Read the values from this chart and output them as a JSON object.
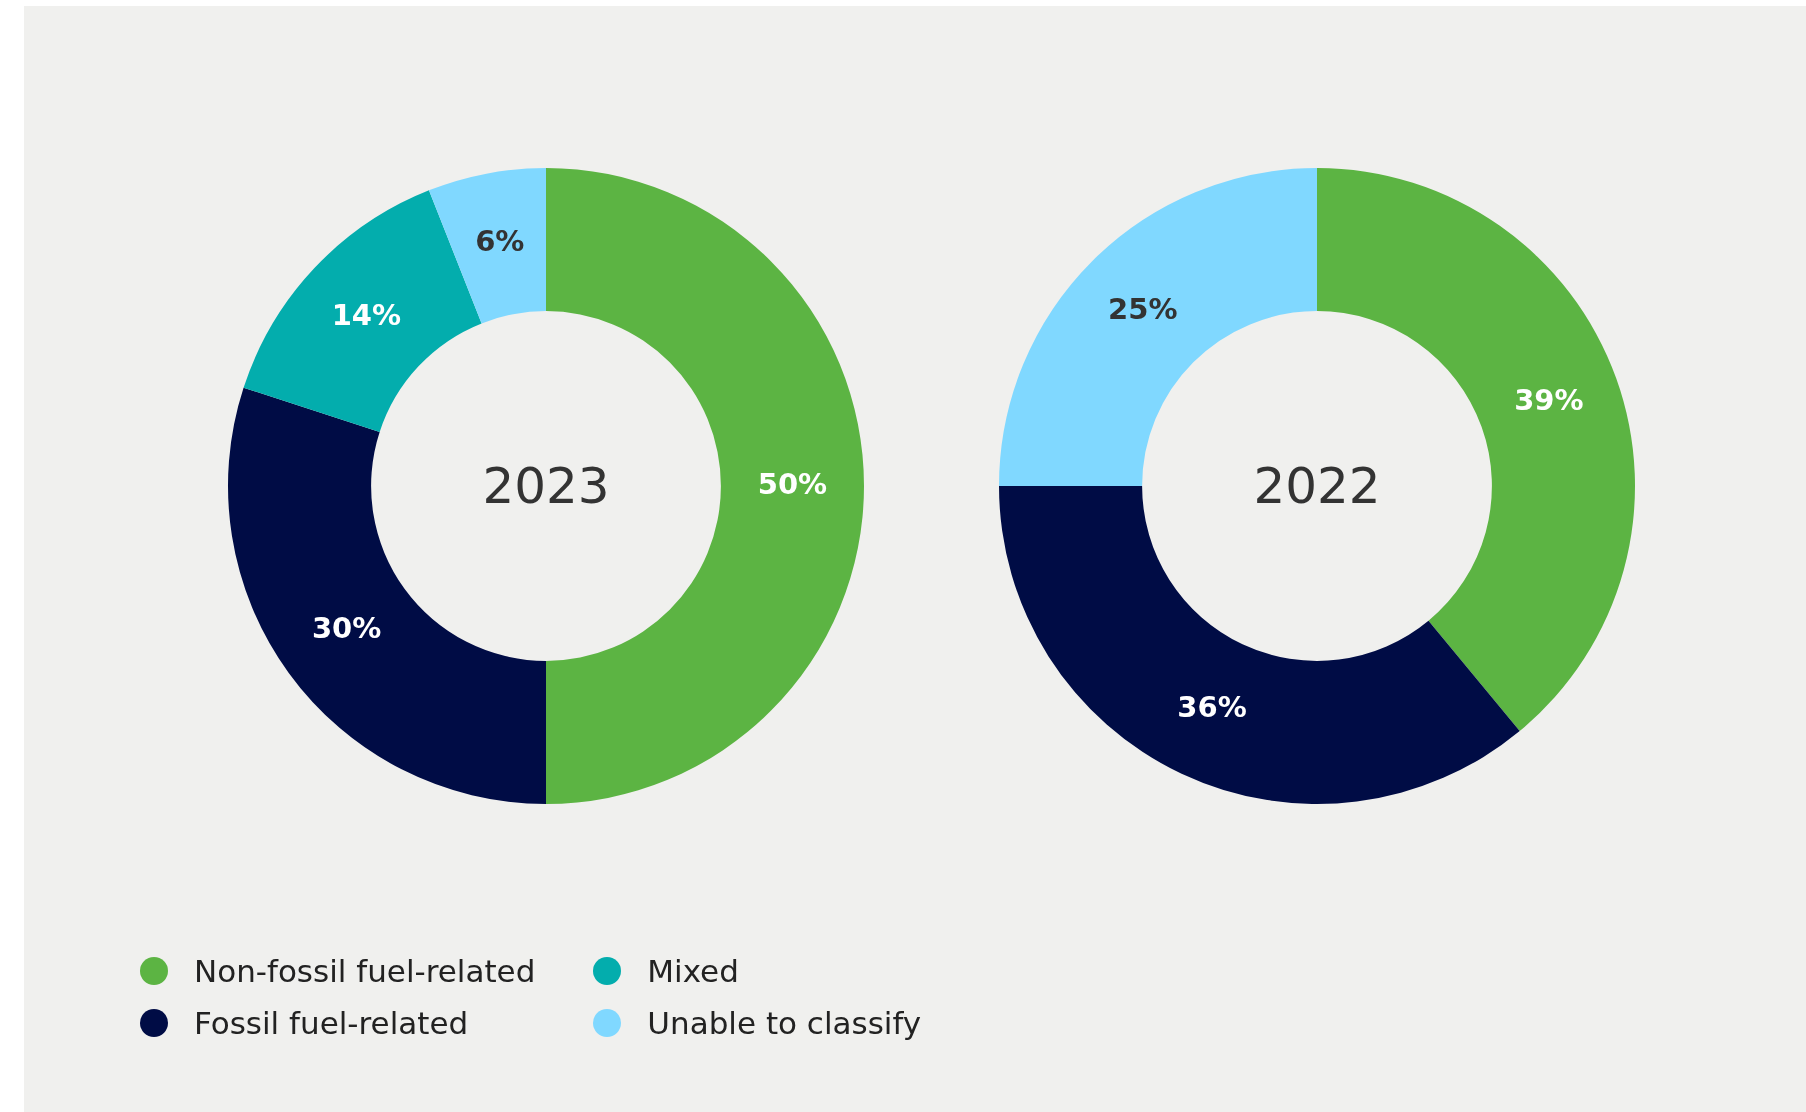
{
  "chart_data": [
    {
      "type": "donut",
      "title": "2023",
      "categories": [
        "Non-fossil fuel-related",
        "Fossil fuel-related",
        "Mixed",
        "Unable to classify"
      ],
      "values": [
        50,
        30,
        14,
        6
      ],
      "colors": [
        "#5cb443",
        "#000c45",
        "#03adad",
        "#80d8ff"
      ],
      "value_labels": [
        "50%",
        "30%",
        "14%",
        "6%"
      ],
      "legend": "bottom left"
    },
    {
      "type": "donut",
      "title": "2022",
      "categories": [
        null,
        null,
        null
      ],
      "values": [
        39,
        36,
        25
      ],
      "colors": [
        "#5cb443",
        "#000c45",
        "#80d8ff"
      ],
      "value_labels": [
        "39%",
        "36%",
        "25%"
      ]
    }
  ]
}
